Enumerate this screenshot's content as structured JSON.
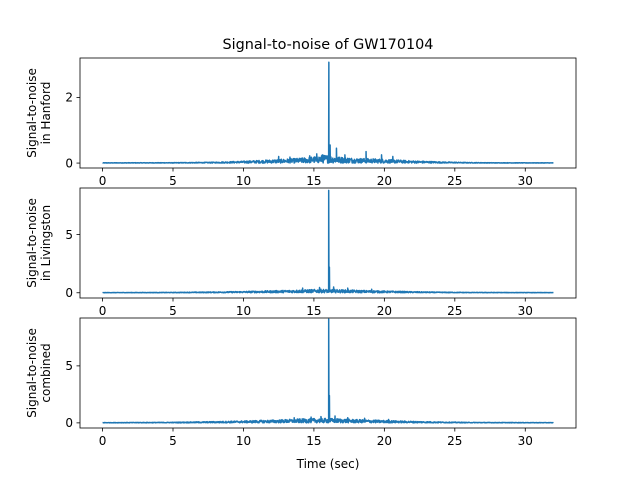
{
  "figure": {
    "title": "Signal-to-noise of GW170104",
    "xlabel": "Time (sec)"
  },
  "chart_data": [
    {
      "type": "line",
      "title": "Signal-to-noise of GW170104",
      "ylabel_lines": [
        "Signal-to-noise",
        "in Hanford"
      ],
      "xlabel": "",
      "xlim": [
        -1.6,
        33.6
      ],
      "ylim": [
        -0.15,
        3.2
      ],
      "xticks": [
        0,
        5,
        10,
        15,
        20,
        25,
        30
      ],
      "yticks": [
        0,
        2
      ],
      "grid": false,
      "series": [
        {
          "color": "#1f77b4",
          "envelope": [
            [
              0,
              0.01
            ],
            [
              5,
              0.015
            ],
            [
              8,
              0.03
            ],
            [
              10,
              0.06
            ],
            [
              12,
              0.1
            ],
            [
              14,
              0.15
            ],
            [
              15,
              0.2
            ],
            [
              15.8,
              0.25
            ],
            [
              16.5,
              0.2
            ],
            [
              18,
              0.15
            ],
            [
              20,
              0.12
            ],
            [
              22,
              0.07
            ],
            [
              24,
              0.04
            ],
            [
              26,
              0.02
            ],
            [
              28,
              0.012
            ],
            [
              32,
              0.01
            ]
          ],
          "spikes": [
            [
              12.5,
              0.2
            ],
            [
              13.3,
              0.18
            ],
            [
              14.7,
              0.22
            ],
            [
              15.2,
              0.28
            ],
            [
              15.6,
              0.25
            ],
            [
              16.06,
              3.07
            ],
            [
              16.15,
              0.55
            ],
            [
              16.6,
              0.45
            ],
            [
              17.2,
              0.25
            ],
            [
              18.7,
              0.35
            ],
            [
              19.8,
              0.25
            ],
            [
              20.6,
              0.2
            ]
          ]
        }
      ]
    },
    {
      "type": "line",
      "ylabel_lines": [
        "Signal-to-noise",
        "in Livingston"
      ],
      "xlabel": "",
      "xlim": [
        -1.6,
        33.6
      ],
      "ylim": [
        -0.45,
        9.0
      ],
      "xticks": [
        0,
        5,
        10,
        15,
        20,
        25,
        30
      ],
      "yticks": [
        0,
        5
      ],
      "grid": false,
      "series": [
        {
          "color": "#1f77b4",
          "envelope": [
            [
              0,
              0.02
            ],
            [
              5,
              0.04
            ],
            [
              8,
              0.08
            ],
            [
              10,
              0.12
            ],
            [
              12,
              0.18
            ],
            [
              14,
              0.25
            ],
            [
              15.5,
              0.3
            ],
            [
              16.5,
              0.28
            ],
            [
              18,
              0.22
            ],
            [
              20,
              0.16
            ],
            [
              22,
              0.1
            ],
            [
              24,
              0.06
            ],
            [
              26,
              0.04
            ],
            [
              32,
              0.02
            ]
          ],
          "spikes": [
            [
              14.2,
              0.4
            ],
            [
              15.4,
              0.45
            ],
            [
              16.05,
              8.8
            ],
            [
              16.1,
              2.2
            ],
            [
              16.4,
              0.5
            ],
            [
              17.4,
              0.4
            ],
            [
              19.1,
              0.3
            ]
          ]
        }
      ]
    },
    {
      "type": "line",
      "ylabel_lines": [
        "Signal-to-noise",
        "combined"
      ],
      "xlabel": "Time (sec)",
      "xlim": [
        -1.6,
        33.6
      ],
      "ylim": [
        -0.45,
        9.2
      ],
      "xticks": [
        0,
        5,
        10,
        15,
        20,
        25,
        30
      ],
      "yticks": [
        0,
        5
      ],
      "grid": false,
      "series": [
        {
          "color": "#1f77b4",
          "envelope": [
            [
              0,
              0.03
            ],
            [
              5,
              0.06
            ],
            [
              8,
              0.12
            ],
            [
              10,
              0.18
            ],
            [
              12,
              0.25
            ],
            [
              14,
              0.35
            ],
            [
              15.5,
              0.4
            ],
            [
              16.5,
              0.38
            ],
            [
              18,
              0.3
            ],
            [
              20,
              0.22
            ],
            [
              22,
              0.14
            ],
            [
              24,
              0.09
            ],
            [
              26,
              0.05
            ],
            [
              32,
              0.03
            ]
          ],
          "spikes": [
            [
              13.6,
              0.45
            ],
            [
              14.8,
              0.5
            ],
            [
              15.5,
              0.55
            ],
            [
              16.05,
              9.1
            ],
            [
              16.1,
              2.4
            ],
            [
              16.5,
              0.6
            ],
            [
              17.4,
              0.45
            ],
            [
              18.6,
              0.4
            ],
            [
              20.3,
              0.3
            ]
          ]
        }
      ]
    }
  ]
}
